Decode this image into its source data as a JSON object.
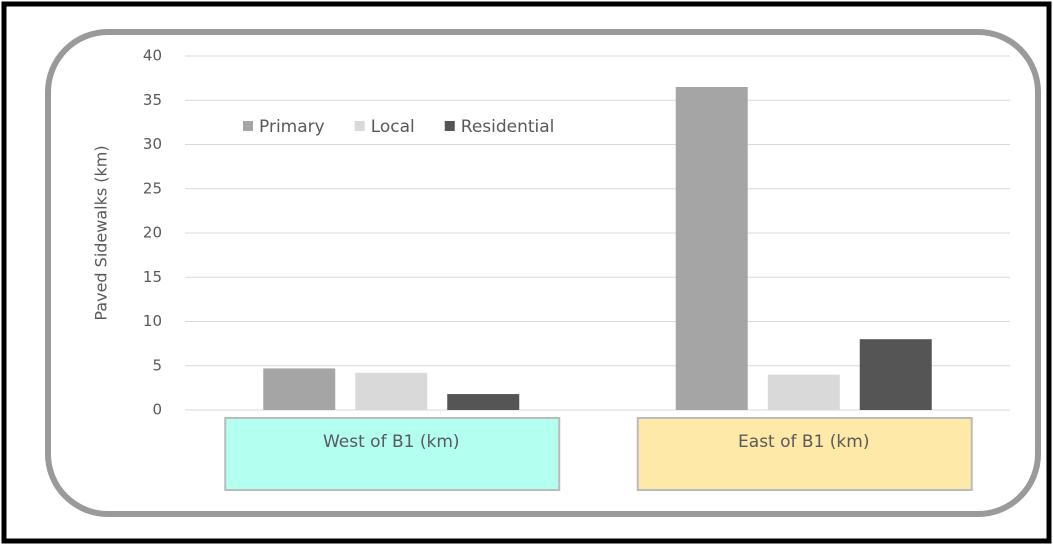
{
  "chart_data": {
    "type": "bar",
    "y_label": "Paved Sidewalks (km)",
    "categories": [
      "West of B1 (km)",
      "East of B1 (km)"
    ],
    "category_colors": [
      "#b3fff0",
      "#ffe9a8"
    ],
    "series": [
      {
        "name": "Primary",
        "color": "#a5a5a5",
        "values": [
          4.7,
          36.5
        ]
      },
      {
        "name": "Local",
        "color": "#d9d9d9",
        "values": [
          4.2,
          4.0
        ]
      },
      {
        "name": "Residential",
        "color": "#555555",
        "values": [
          1.8,
          8.0
        ]
      }
    ],
    "ylim": [
      0,
      40
    ],
    "yticks": [
      0,
      5,
      10,
      15,
      20,
      25,
      30,
      35,
      40
    ],
    "grid": true
  }
}
